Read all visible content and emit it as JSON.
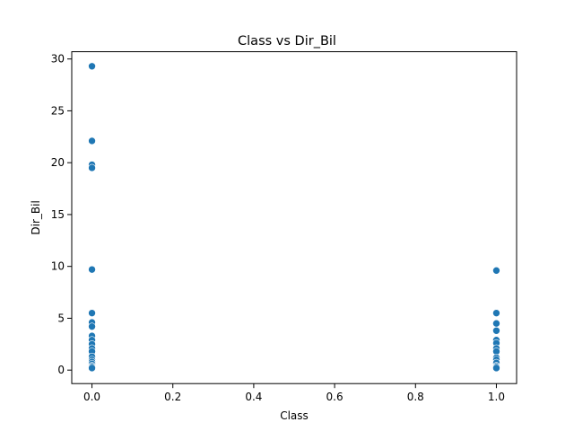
{
  "chart_data": {
    "type": "scatter",
    "title": "Class vs Dir_Bil",
    "xlabel": "Class",
    "ylabel": "Dir_Bil",
    "xlim": [
      -0.05,
      1.05
    ],
    "ylim": [
      -1.3,
      30.7
    ],
    "x_ticks": [
      0.0,
      0.2,
      0.4,
      0.6,
      0.8,
      1.0
    ],
    "x_tick_labels": [
      "0.0",
      "0.2",
      "0.4",
      "0.6",
      "0.8",
      "1.0"
    ],
    "y_ticks": [
      0,
      5,
      10,
      15,
      20,
      25,
      30
    ],
    "y_tick_labels": [
      "0",
      "5",
      "10",
      "15",
      "20",
      "25",
      "30"
    ],
    "grid": false,
    "marker_color": "#1f77b4",
    "series": [
      {
        "points": [
          {
            "x": 0,
            "y": 29.3
          },
          {
            "x": 0,
            "y": 22.1
          },
          {
            "x": 0,
            "y": 19.8
          },
          {
            "x": 0,
            "y": 19.5
          },
          {
            "x": 0,
            "y": 9.7
          },
          {
            "x": 0,
            "y": 5.5
          },
          {
            "x": 0,
            "y": 4.6
          },
          {
            "x": 0,
            "y": 4.2
          },
          {
            "x": 0,
            "y": 3.3
          },
          {
            "x": 0,
            "y": 2.9
          },
          {
            "x": 0,
            "y": 2.5
          },
          {
            "x": 0,
            "y": 2.1
          },
          {
            "x": 0,
            "y": 1.8
          },
          {
            "x": 0,
            "y": 1.3
          },
          {
            "x": 0,
            "y": 1.0
          },
          {
            "x": 0,
            "y": 0.8
          },
          {
            "x": 0,
            "y": 0.6
          },
          {
            "x": 0,
            "y": 0.4
          },
          {
            "x": 0,
            "y": 0.3
          },
          {
            "x": 0,
            "y": 0.2
          },
          {
            "x": 1,
            "y": 9.6
          },
          {
            "x": 1,
            "y": 5.5
          },
          {
            "x": 1,
            "y": 4.5
          },
          {
            "x": 1,
            "y": 3.8
          },
          {
            "x": 1,
            "y": 2.9
          },
          {
            "x": 1,
            "y": 2.6
          },
          {
            "x": 1,
            "y": 2.1
          },
          {
            "x": 1,
            "y": 1.8
          },
          {
            "x": 1,
            "y": 1.2
          },
          {
            "x": 1,
            "y": 1.0
          },
          {
            "x": 1,
            "y": 0.7
          },
          {
            "x": 1,
            "y": 0.4
          },
          {
            "x": 1,
            "y": 0.3
          },
          {
            "x": 1,
            "y": 0.2
          }
        ]
      }
    ]
  }
}
